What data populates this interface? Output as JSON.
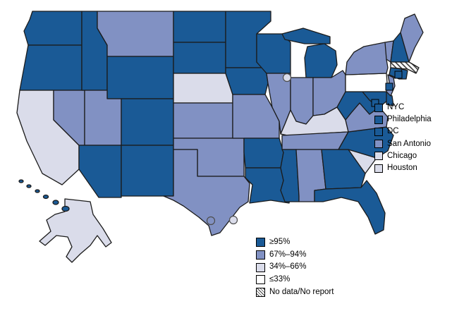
{
  "figure": {
    "description": "United States choropleth map of reported percentage coverage by state, with separately reported city areas",
    "background": "#ffffff"
  },
  "category_colors": {
    "ge95": "#1a5a96",
    "c67_94": "#8191c3",
    "c34_66": "#dadcea",
    "le33": "#ffffff",
    "no_data": "hatch",
    "state_border": "#1b1b1b"
  },
  "city_legend": {
    "items": [
      {
        "label": "NYC",
        "category": "ge95",
        "marker": "square"
      },
      {
        "label": "Philadelphia",
        "category": "ge95",
        "marker": "square"
      },
      {
        "label": "DC",
        "category": "ge95",
        "marker": "square"
      },
      {
        "label": "San Antonio",
        "category": "c67_94",
        "marker": "circle"
      },
      {
        "label": "Chicago",
        "category": "c34_66",
        "marker": "circle"
      },
      {
        "label": "Houston",
        "category": "c34_66",
        "marker": "circle"
      }
    ]
  },
  "value_legend": {
    "items": [
      {
        "label": "≥95%",
        "category": "ge95"
      },
      {
        "label": "67%–94%",
        "category": "c67_94"
      },
      {
        "label": "34%–66%",
        "category": "c34_66"
      },
      {
        "label": "≤33%",
        "category": "le33"
      },
      {
        "label": "No data/No report",
        "category": "no_data"
      }
    ]
  },
  "states": {
    "WA": "ge95",
    "OR": "ge95",
    "CA": "c34_66",
    "NV": "c67_94",
    "ID": "ge95",
    "MT": "c67_94",
    "WY": "ge95",
    "UT": "c67_94",
    "CO": "ge95",
    "AZ": "ge95",
    "NM": "ge95",
    "ND": "ge95",
    "SD": "ge95",
    "NE": "c34_66",
    "KS": "c67_94",
    "OK": "c67_94",
    "TX": "c67_94",
    "MN": "ge95",
    "IA": "ge95",
    "MO": "c67_94",
    "AR": "ge95",
    "LA": "ge95",
    "WI": "ge95",
    "IL": "c67_94",
    "MI": "ge95",
    "IN": "c67_94",
    "OH": "c67_94",
    "KY": "c34_66",
    "TN": "c67_94",
    "MS": "ge95",
    "AL": "c67_94",
    "GA": "ge95",
    "FL": "ge95",
    "SC": "c34_66",
    "NC": "ge95",
    "VA": "c67_94",
    "WV": "ge95",
    "MD": "ge95",
    "DE": "ge95",
    "PA": "le33",
    "NJ": "c67_94",
    "NY": "c67_94",
    "CT": "ge95",
    "RI": "ge95",
    "MA": "no_data",
    "VT": "c67_94",
    "NH": "ge95",
    "ME": "c67_94",
    "AK": "c34_66",
    "HI": "ge95"
  }
}
